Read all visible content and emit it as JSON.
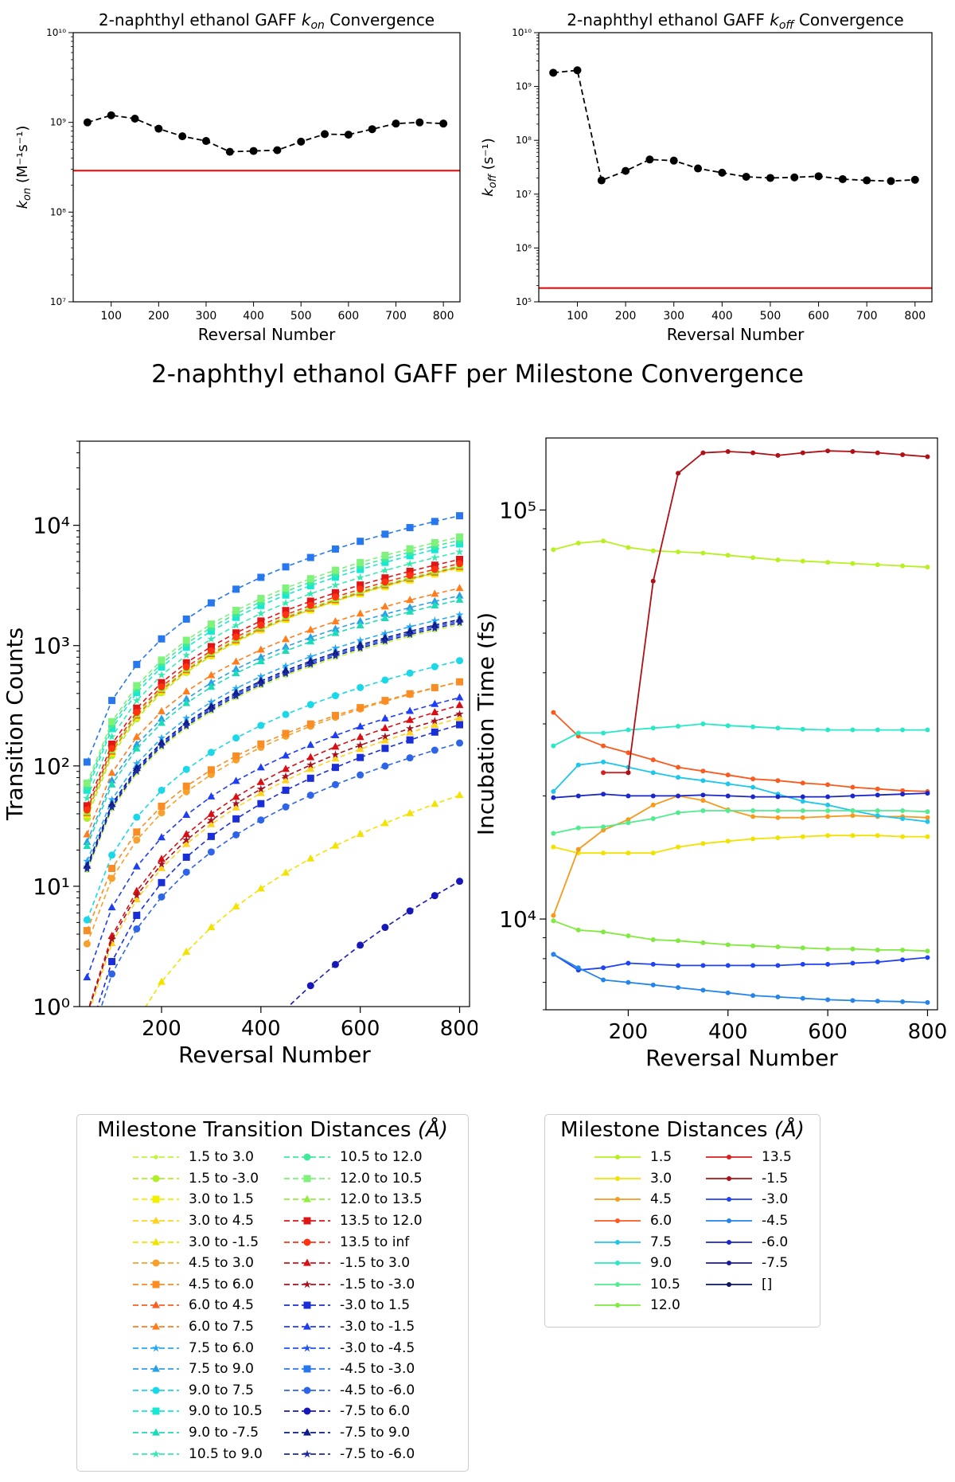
{
  "figure_title": "2-naphthyl ethanol GAFF per Milestone Convergence",
  "colors": {
    "conv_line": "#000000",
    "reference": "#ff0000"
  },
  "chart_data": [
    {
      "id": "kon",
      "type": "line",
      "title": "2-naphthyl ethanol GAFF k_on Convergence",
      "title_main": "2-naphthyl ethanol GAFF ",
      "title_sym": "k",
      "title_sub": "on",
      "title_tail": " Convergence",
      "xlabel": "Reversal Number",
      "ylabel_sym": "k",
      "ylabel_sub": "on",
      "ylabel_unit": "(M⁻¹s⁻¹)",
      "yscale": "log",
      "xlim": [
        20,
        835
      ],
      "ylim": [
        10000000,
        10000000000
      ],
      "xticks": [
        100,
        200,
        300,
        400,
        500,
        600,
        700,
        800
      ],
      "yticks": [
        10000000,
        100000000,
        1000000000,
        10000000000
      ],
      "ytick_labels": [
        "10⁷",
        "10⁸",
        "10⁹",
        "10¹⁰"
      ],
      "series": [
        {
          "style": "dashed",
          "marker": "circle",
          "x": [
            50,
            100,
            150,
            200,
            250,
            300,
            350,
            400,
            450,
            500,
            550,
            600,
            650,
            700,
            750,
            800
          ],
          "y": [
            1000000000,
            1200000000,
            1100000000,
            850000000,
            700000000,
            620000000,
            470000000,
            480000000,
            490000000,
            610000000,
            740000000,
            730000000,
            840000000,
            970000000,
            1000000000,
            970000000
          ]
        }
      ],
      "reference_line": 290000000
    },
    {
      "id": "koff",
      "type": "line",
      "title": "2-naphthyl ethanol GAFF k_off Convergence",
      "title_main": "2-naphthyl ethanol GAFF ",
      "title_sym": "k",
      "title_sub": "off",
      "title_tail": " Convergence",
      "xlabel": "Reversal Number",
      "ylabel_sym": "k",
      "ylabel_sub": "off",
      "ylabel_unit": "(s⁻¹)",
      "yscale": "log",
      "xlim": [
        20,
        835
      ],
      "ylim": [
        100000,
        10000000000
      ],
      "xticks": [
        100,
        200,
        300,
        400,
        500,
        600,
        700,
        800
      ],
      "yticks": [
        100000,
        1000000,
        10000000,
        100000000,
        1000000000,
        10000000000
      ],
      "ytick_labels": [
        "10⁵",
        "10⁶",
        "10⁷",
        "10⁸",
        "10⁹",
        "10¹⁰"
      ],
      "series": [
        {
          "style": "dashed",
          "marker": "circle",
          "x": [
            50,
            100,
            150,
            200,
            250,
            300,
            350,
            400,
            450,
            500,
            550,
            600,
            650,
            700,
            750,
            800
          ],
          "y": [
            1800000000,
            2000000000,
            18000000,
            27000000,
            44000000,
            42000000,
            30000000,
            25000000,
            21000000,
            20000000,
            20500000,
            21500000,
            19000000,
            18000000,
            17500000,
            18500000
          ]
        }
      ],
      "reference_line": 180000
    },
    {
      "id": "counts",
      "type": "line",
      "xlabel": "Reversal Number",
      "ylabel": "Transition Counts",
      "yscale": "log",
      "xlim": [
        35,
        820
      ],
      "ylim": [
        1,
        50000
      ],
      "xticks": [
        200,
        400,
        600,
        800
      ],
      "yticks": [
        1,
        10,
        100,
        1000,
        10000
      ],
      "ytick_labels": [
        "10⁰",
        "10¹",
        "10²",
        "10³",
        "10⁴"
      ],
      "x": [
        50,
        100,
        150,
        200,
        250,
        300,
        350,
        400,
        450,
        500,
        550,
        600,
        650,
        700,
        750,
        800
      ],
      "series": [
        {
          "name": "1.5 to 3.0",
          "color": "#bff63a",
          "marker": "dot",
          "f": 1500,
          "s": 1.0
        },
        {
          "name": "1.5 to -3.0",
          "color": "#b0ee2a",
          "marker": "circle",
          "f": 4500,
          "s": 0.98
        },
        {
          "name": "3.0 to 1.5",
          "color": "#f0f000",
          "marker": "square",
          "f": 4400,
          "s": 1.0
        },
        {
          "name": "3.0 to 4.5",
          "color": "#ffd21e",
          "marker": "triangle",
          "f": 250,
          "s": 0.82
        },
        {
          "name": "3.0 to -1.5",
          "color": "#f2e300",
          "marker": "triangle",
          "f": 57,
          "s": 0.66
        },
        {
          "name": "4.5 to 3.0",
          "color": "#f7a12c",
          "marker": "circle",
          "f": 500,
          "s": 0.94
        },
        {
          "name": "4.5 to 6.0",
          "color": "#fa8c24",
          "marker": "square",
          "f": 500,
          "s": 0.99
        },
        {
          "name": "6.0 to 4.5",
          "color": "#fb5e22",
          "marker": "triangle",
          "f": 4500,
          "s": 1.0
        },
        {
          "name": "6.0 to 7.5",
          "color": "#ff7d1c",
          "marker": "triangle",
          "f": 3000,
          "s": 1.0
        },
        {
          "name": "7.5 to 6.0",
          "color": "#25a9f5",
          "marker": "star",
          "f": 1800,
          "s": 1.0
        },
        {
          "name": "7.5 to 9.0",
          "color": "#2aa0e8",
          "marker": "triangle",
          "f": 2600,
          "s": 1.0
        },
        {
          "name": "9.0 to 7.5",
          "color": "#1ad8e8",
          "marker": "circle",
          "f": 750,
          "s": 0.95
        },
        {
          "name": "9.0 to 10.5",
          "color": "#16e8d2",
          "marker": "square",
          "f": 7000,
          "s": 1.0
        },
        {
          "name": "9.0 to -7.5",
          "color": "#1bdcb8",
          "marker": "triangle",
          "f": 2400,
          "s": 1.0
        },
        {
          "name": "10.5 to 9.0",
          "color": "#35eab0",
          "marker": "star",
          "f": 6000,
          "s": 1.0
        },
        {
          "name": "10.5 to 12.0",
          "color": "#3deb9a",
          "marker": "circle",
          "f": 7500,
          "s": 1.0
        },
        {
          "name": "12.0 to 10.5",
          "color": "#7ef27a",
          "marker": "square",
          "f": 8000,
          "s": 1.0
        },
        {
          "name": "12.0 to 13.5",
          "color": "#90f03c",
          "marker": "triangle",
          "f": 4600,
          "s": 1.0
        },
        {
          "name": "13.5 to 12.0",
          "color": "#e01515",
          "marker": "square",
          "f": 5200,
          "s": 1.0
        },
        {
          "name": "13.5 to inf",
          "color": "#ff3312",
          "marker": "circle",
          "f": 4800,
          "s": 1.0
        },
        {
          "name": "-1.5 to 3.0",
          "color": "#d80f14",
          "marker": "triangle",
          "f": 320,
          "s": 0.8
        },
        {
          "name": "-1.5 to -3.0",
          "color": "#a8101e",
          "marker": "star",
          "f": 270,
          "s": 0.82
        },
        {
          "name": "-3.0 to 1.5",
          "color": "#1a2ed8",
          "marker": "square",
          "f": 220,
          "s": 0.78
        },
        {
          "name": "-3.0 to -1.5",
          "color": "#1f3df2",
          "marker": "triangle",
          "f": 370,
          "s": 0.88
        },
        {
          "name": "-3.0 to -4.5",
          "color": "#2350f5",
          "marker": "star",
          "f": 1600,
          "s": 1.0
        },
        {
          "name": "-4.5 to -3.0",
          "color": "#2778ee",
          "marker": "square",
          "f": 12000,
          "s": 1.0
        },
        {
          "name": "-4.5 to -6.0",
          "color": "#2e64e8",
          "marker": "circle",
          "f": 155,
          "s": 0.8
        },
        {
          "name": "-7.5 to 6.0",
          "color": "#1818b8",
          "marker": "circle",
          "f": 11,
          "s": 0.4
        },
        {
          "name": "-7.5 to 9.0",
          "color": "#0d1a88",
          "marker": "triangle",
          "f": 1650,
          "s": 1.0
        },
        {
          "name": "-7.5 to -6.0",
          "color": "#1c2a9c",
          "marker": "star",
          "f": 1550,
          "s": 1.0
        }
      ]
    },
    {
      "id": "incubation",
      "type": "line",
      "xlabel": "Reversal Number",
      "ylabel": "Incubation Time (fs)",
      "yscale": "log",
      "xlim": [
        35,
        820
      ],
      "ylim": [
        6000,
        150000
      ],
      "xticks": [
        200,
        400,
        600,
        800
      ],
      "yticks": [
        10000,
        100000
      ],
      "ytick_labels": [
        "10⁴",
        "10⁵"
      ],
      "series": [
        {
          "name": "1.5",
          "color": "#b8f020",
          "x": [
            50,
            100,
            150,
            200,
            250,
            300,
            350,
            400,
            450,
            500,
            550,
            600,
            650,
            700,
            750,
            800
          ],
          "y": [
            80000,
            83000,
            84000,
            81000,
            79500,
            79000,
            78500,
            77500,
            76500,
            75500,
            75000,
            74500,
            74000,
            73500,
            73000,
            72500
          ]
        },
        {
          "name": "3.0",
          "color": "#f2e200",
          "x": [
            50,
            100,
            150,
            200,
            250,
            300,
            350,
            400,
            450,
            500,
            550,
            600,
            650,
            700,
            750,
            800
          ],
          "y": [
            15000,
            14500,
            14500,
            14500,
            14500,
            15000,
            15300,
            15500,
            15700,
            15800,
            15900,
            16000,
            16000,
            16000,
            15900,
            15900
          ]
        },
        {
          "name": "4.5",
          "color": "#f79a1c",
          "x": [
            50,
            100,
            150,
            200,
            250,
            300,
            350,
            400,
            450,
            500,
            550,
            600,
            650,
            700,
            750,
            800
          ],
          "y": [
            10200,
            14800,
            16500,
            17500,
            19000,
            20000,
            19500,
            18500,
            17800,
            17700,
            17700,
            17800,
            17900,
            17800,
            17800,
            17700
          ]
        },
        {
          "name": "6.0",
          "color": "#fb5a1f",
          "x": [
            50,
            100,
            150,
            200,
            250,
            300,
            350,
            400,
            450,
            500,
            550,
            600,
            650,
            700,
            750,
            800
          ],
          "y": [
            32000,
            28000,
            26500,
            25500,
            24500,
            23500,
            23000,
            22500,
            22000,
            21800,
            21500,
            21300,
            21000,
            20800,
            20600,
            20500
          ]
        },
        {
          "name": "7.5",
          "color": "#1ec6ec",
          "x": [
            50,
            100,
            150,
            200,
            250,
            300,
            350,
            400,
            450,
            500,
            550,
            600,
            650,
            700,
            750,
            800
          ],
          "y": [
            20500,
            23800,
            24200,
            23500,
            22800,
            22200,
            21800,
            21400,
            21000,
            20200,
            19400,
            19000,
            18400,
            17900,
            17600,
            17300
          ]
        },
        {
          "name": "9.0",
          "color": "#28e8c8",
          "x": [
            50,
            100,
            150,
            200,
            250,
            300,
            350,
            400,
            450,
            500,
            550,
            600,
            650,
            700,
            750,
            800
          ],
          "y": [
            26500,
            28500,
            28500,
            29000,
            29300,
            29600,
            30000,
            29700,
            29500,
            29300,
            29100,
            29000,
            29000,
            29000,
            29000,
            29000
          ]
        },
        {
          "name": "10.5",
          "color": "#50ec90",
          "x": [
            50,
            100,
            150,
            200,
            250,
            300,
            350,
            400,
            450,
            500,
            550,
            600,
            650,
            700,
            750,
            800
          ],
          "y": [
            16200,
            16700,
            16800,
            17200,
            17600,
            18200,
            18400,
            18400,
            18400,
            18400,
            18400,
            18400,
            18400,
            18400,
            18400,
            18300
          ]
        },
        {
          "name": "12.0",
          "color": "#80ea40",
          "x": [
            50,
            100,
            150,
            200,
            250,
            300,
            350,
            400,
            450,
            500,
            550,
            600,
            650,
            700,
            750,
            800
          ],
          "y": [
            9900,
            9400,
            9300,
            9100,
            8900,
            8850,
            8750,
            8650,
            8600,
            8550,
            8500,
            8450,
            8450,
            8400,
            8400,
            8350
          ]
        },
        {
          "name": "13.5",
          "color": "#d81e1e",
          "x": [
            150,
            200
          ],
          "y": [
            22800,
            22800
          ]
        },
        {
          "name": "-1.5",
          "color": "#b01015",
          "x": [
            200,
            250,
            300,
            350,
            400,
            450,
            500,
            550,
            600,
            650,
            700,
            750,
            800
          ],
          "y": [
            22800,
            67000,
            123000,
            138000,
            139000,
            138000,
            136000,
            138000,
            139500,
            139000,
            138000,
            136500,
            135000
          ]
        },
        {
          "name": "-3.0",
          "color": "#1f43f2",
          "x": [
            50,
            100,
            150,
            200,
            250,
            300,
            350,
            400,
            450,
            500,
            550,
            600,
            650,
            700,
            750,
            800
          ],
          "y": [
            8200,
            7500,
            7600,
            7800,
            7750,
            7700,
            7700,
            7700,
            7700,
            7700,
            7750,
            7750,
            7800,
            7850,
            7950,
            8050
          ]
        },
        {
          "name": "-4.5",
          "color": "#2384ea",
          "x": [
            50,
            100,
            150,
            200,
            250,
            300,
            350,
            400,
            450,
            500,
            550,
            600,
            650,
            700,
            750,
            800
          ],
          "y": [
            8200,
            7600,
            7100,
            7000,
            6900,
            6800,
            6700,
            6600,
            6500,
            6450,
            6400,
            6350,
            6320,
            6300,
            6280,
            6250
          ]
        },
        {
          "name": "-6.0",
          "color": "#1a26c8",
          "x": [
            50,
            100,
            150,
            200,
            250,
            300,
            350,
            400,
            450,
            500,
            550,
            600,
            650,
            700,
            750,
            800
          ],
          "y": [
            19800,
            20000,
            20200,
            20000,
            20000,
            20000,
            20100,
            20000,
            19900,
            19900,
            19900,
            19900,
            20000,
            20100,
            20200,
            20300
          ]
        },
        {
          "name": "-7.5",
          "color": "#1a1a98",
          "x": [],
          "y": []
        },
        {
          "name": "[]",
          "color": "#0a1660",
          "x": [],
          "y": []
        }
      ]
    }
  ],
  "legend_counts": {
    "title_main": "Milestone Transition Distances ",
    "title_unit": "(Å)"
  },
  "legend_times": {
    "title_main": "Milestone Distances ",
    "title_unit": "(Å)"
  }
}
